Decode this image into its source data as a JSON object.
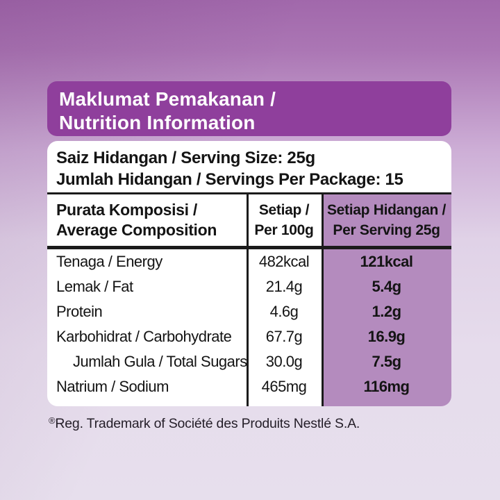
{
  "title_box": {
    "line1": "Maklumat Pemakanan /",
    "line2": "Nutrition Information"
  },
  "serving_info": {
    "line1": "Saiz Hidangan / Serving Size: 25g",
    "line2": "Jumlah Hidangan / Servings Per Package: 15"
  },
  "table": {
    "columns": [
      {
        "line1": "Purata Komposisi /",
        "line2": "Average Composition"
      },
      {
        "line1": "Setiap /",
        "line2": "Per 100g"
      },
      {
        "line1": "Setiap Hidangan /",
        "line2": "Per Serving 25g"
      }
    ],
    "rows": [
      {
        "label": "Tenaga / Energy",
        "per100g": "482kcal",
        "perServing": "121kcal"
      },
      {
        "label": "Lemak / Fat",
        "per100g": "21.4g",
        "perServing": "5.4g"
      },
      {
        "label": "Protein",
        "per100g": "4.6g",
        "perServing": "1.2g"
      },
      {
        "label": "Karbohidrat / Carbohydrate",
        "per100g": "67.7g",
        "perServing": "16.9g"
      },
      {
        "label": "Jumlah Gula / Total Sugars",
        "per100g": "30.0g",
        "perServing": "7.5g"
      },
      {
        "label": "Natrium / Sodium",
        "per100g": "465mg",
        "perServing": "116mg"
      }
    ]
  },
  "footnote": {
    "symbol": "®",
    "text": "Reg. Trademark of Société des Produits Nestlé S.A."
  },
  "colors": {
    "banner_purple": "#8f3f9c",
    "highlight_purple": "#b48bbe",
    "background_top": "#a168ab",
    "background_bottom": "#e7dfed",
    "text_black": "#141414",
    "card_white": "#ffffff"
  }
}
